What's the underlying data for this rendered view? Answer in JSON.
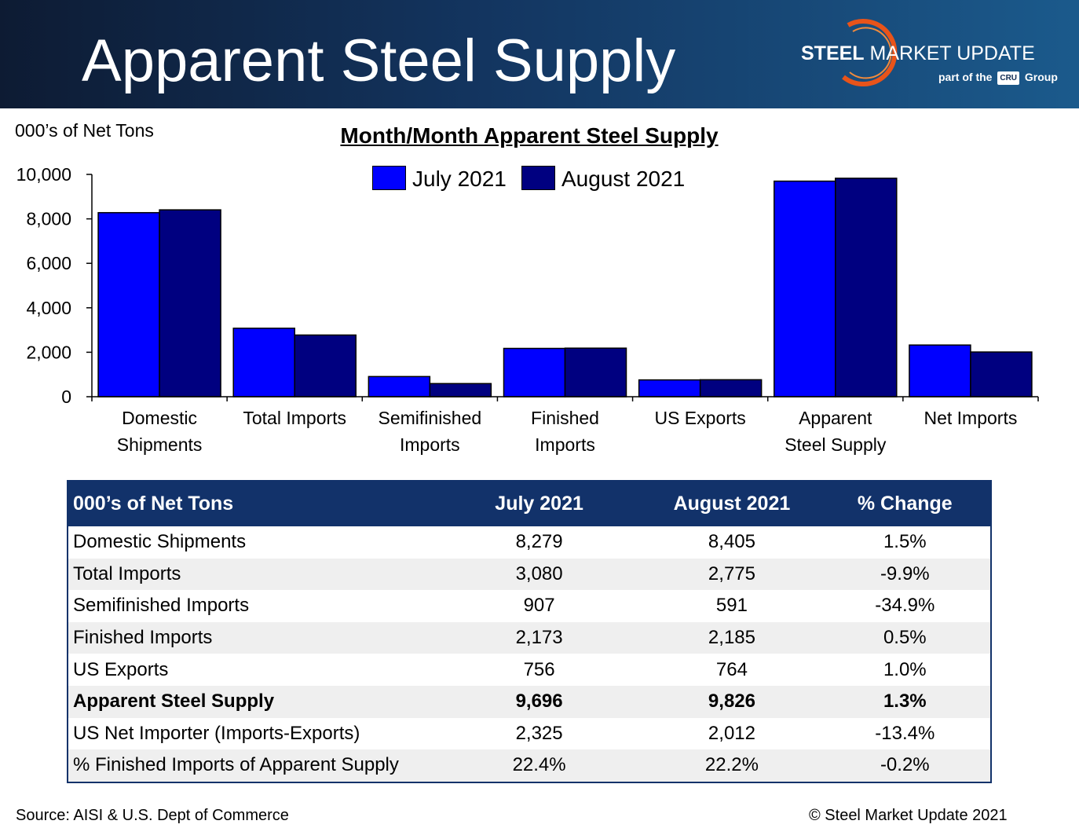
{
  "header": {
    "title": "Apparent Steel Supply",
    "logo_main_bold": "STEEL",
    "logo_main_rest": " MARKET UPDATE",
    "logo_sub_prefix": "part of the",
    "logo_sub_box": "CRU",
    "logo_sub_suffix": "Group"
  },
  "units_label": "000’s of Net Tons",
  "colors": {
    "july": "#0000ff",
    "august": "#000080",
    "header_dark": "#0d1b33",
    "table_header": "#12326a",
    "logo_arc": "#e8541a"
  },
  "chart_data": {
    "type": "bar",
    "title": "Month/Month Apparent Steel Supply",
    "ylabel": "000’s of Net Tons",
    "ylim": [
      0,
      10000
    ],
    "yticks": [
      0,
      2000,
      4000,
      6000,
      8000,
      10000
    ],
    "ytick_labels": [
      "0",
      "2,000",
      "4,000",
      "6,000",
      "8,000",
      "10,000"
    ],
    "categories": [
      [
        "Domestic",
        "Shipments"
      ],
      [
        "Total Imports"
      ],
      [
        "Semifinished",
        "Imports"
      ],
      [
        "Finished",
        "Imports"
      ],
      [
        "US Exports"
      ],
      [
        "Apparent",
        "Steel Supply"
      ],
      [
        "Net Imports"
      ]
    ],
    "series": [
      {
        "name": "July 2021",
        "color": "#0000ff",
        "values": [
          8279,
          3080,
          907,
          2173,
          756,
          9696,
          2325
        ]
      },
      {
        "name": "August 2021",
        "color": "#000080",
        "values": [
          8405,
          2775,
          591,
          2185,
          764,
          9826,
          2012
        ]
      }
    ],
    "legend_position": "top-center",
    "grid": false
  },
  "table": {
    "headers": [
      "000’s of Net Tons",
      "July 2021",
      "August 2021",
      "% Change"
    ],
    "rows": [
      {
        "label": "Domestic Shipments",
        "july": "8,279",
        "august": "8,405",
        "change": "1.5%"
      },
      {
        "label": "Total Imports",
        "july": "3,080",
        "august": "2,775",
        "change": "-9.9%"
      },
      {
        "label": "Semifinished Imports",
        "july": "907",
        "august": "591",
        "change": "-34.9%"
      },
      {
        "label": "Finished Imports",
        "july": "2,173",
        "august": "2,185",
        "change": "0.5%"
      },
      {
        "label": "US Exports",
        "july": "756",
        "august": "764",
        "change": "1.0%"
      },
      {
        "label": "Apparent Steel Supply",
        "july": "9,696",
        "august": "9,826",
        "change": "1.3%"
      },
      {
        "label": "US Net Importer (Imports-Exports)",
        "july": "2,325",
        "august": "2,012",
        "change": "-13.4%"
      },
      {
        "label": "% Finished Imports of Apparent Supply",
        "july": "22.4%",
        "august": "22.2%",
        "change": "-0.2%"
      }
    ]
  },
  "footer": {
    "source": "Source:  AISI & U.S. Dept of Commerce",
    "copyright": "©    Steel Market Update 2021"
  }
}
